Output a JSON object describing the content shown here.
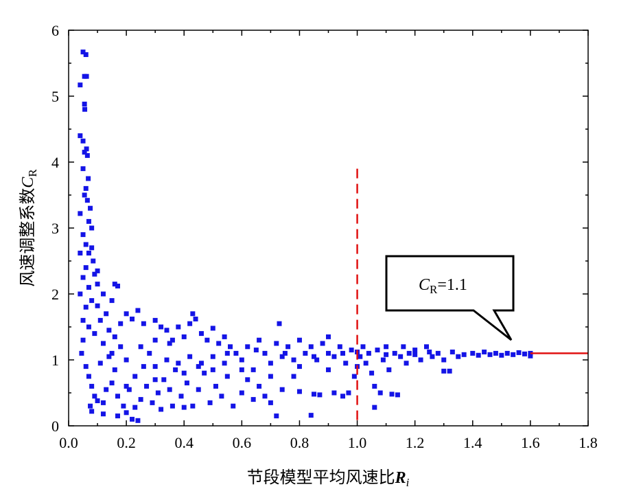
{
  "chart_data": {
    "type": "scatter",
    "title": "",
    "xlabel": "节段模型平均风速比",
    "xlabel_symbol": "R",
    "xlabel_sub": "i",
    "ylabel": "风速调整系数",
    "ylabel_symbol": "C",
    "ylabel_sub": "R",
    "xlim": [
      0,
      1.8
    ],
    "ylim": [
      0,
      6
    ],
    "xticks": [
      "0.0",
      "0.2",
      "0.4",
      "0.6",
      "0.8",
      "1.0",
      "1.2",
      "1.4",
      "1.6",
      "1.8"
    ],
    "yticks": [
      "0",
      "1",
      "2",
      "3",
      "4",
      "5",
      "6"
    ],
    "marker_color": "#1414e6",
    "reference_lines": [
      {
        "type": "vertical",
        "x": 1.0,
        "y_range": [
          0,
          3.9
        ],
        "style": "dashed",
        "color": "#e01010"
      },
      {
        "type": "horizontal",
        "y": 1.1,
        "x_range": [
          1.6,
          1.8
        ],
        "style": "solid",
        "color": "#e01010"
      }
    ],
    "annotation": {
      "symbol": "C",
      "sub": "R",
      "text": "=1.1",
      "points_to": [
        1.55,
        1.15
      ]
    },
    "series": [
      {
        "name": "CR",
        "points": [
          [
            0.05,
            5.67
          ],
          [
            0.06,
            5.63
          ],
          [
            0.055,
            5.3
          ],
          [
            0.062,
            5.3
          ],
          [
            0.04,
            5.17
          ],
          [
            0.055,
            4.88
          ],
          [
            0.056,
            4.8
          ],
          [
            0.04,
            4.4
          ],
          [
            0.05,
            4.32
          ],
          [
            0.055,
            4.15
          ],
          [
            0.062,
            4.2
          ],
          [
            0.065,
            4.1
          ],
          [
            0.05,
            3.9
          ],
          [
            0.068,
            3.75
          ],
          [
            0.06,
            3.6
          ],
          [
            0.055,
            3.5
          ],
          [
            0.065,
            3.42
          ],
          [
            0.075,
            3.3
          ],
          [
            0.04,
            3.22
          ],
          [
            0.07,
            3.1
          ],
          [
            0.08,
            3.0
          ],
          [
            0.05,
            2.9
          ],
          [
            0.06,
            2.75
          ],
          [
            0.07,
            2.62
          ],
          [
            0.04,
            2.62
          ],
          [
            0.085,
            2.5
          ],
          [
            0.06,
            2.4
          ],
          [
            0.09,
            2.3
          ],
          [
            0.05,
            2.25
          ],
          [
            0.1,
            2.15
          ],
          [
            0.07,
            2.1
          ],
          [
            0.12,
            2.0
          ],
          [
            0.04,
            2.0
          ],
          [
            0.08,
            1.9
          ],
          [
            0.06,
            1.8
          ],
          [
            0.1,
            1.82
          ],
          [
            0.05,
            1.6
          ],
          [
            0.11,
            1.6
          ],
          [
            0.07,
            1.5
          ],
          [
            0.09,
            1.4
          ],
          [
            0.05,
            1.3
          ],
          [
            0.13,
            1.7
          ],
          [
            0.15,
            1.9
          ],
          [
            0.17,
            2.12
          ],
          [
            0.16,
            2.15
          ],
          [
            0.1,
            2.35
          ],
          [
            0.08,
            2.7
          ],
          [
            0.045,
            1.1
          ],
          [
            0.06,
            0.9
          ],
          [
            0.07,
            0.75
          ],
          [
            0.08,
            0.6
          ],
          [
            0.09,
            0.45
          ],
          [
            0.075,
            0.3
          ],
          [
            0.08,
            0.22
          ],
          [
            0.1,
            0.38
          ],
          [
            0.12,
            0.35
          ],
          [
            0.12,
            0.18
          ],
          [
            0.13,
            0.55
          ],
          [
            0.11,
            0.95
          ],
          [
            0.14,
            1.05
          ],
          [
            0.12,
            1.25
          ],
          [
            0.14,
            1.45
          ],
          [
            0.16,
            1.35
          ],
          [
            0.18,
            1.55
          ],
          [
            0.2,
            1.7
          ],
          [
            0.22,
            1.62
          ],
          [
            0.24,
            1.75
          ],
          [
            0.26,
            1.55
          ],
          [
            0.18,
            1.2
          ],
          [
            0.2,
            1.0
          ],
          [
            0.16,
            0.85
          ],
          [
            0.15,
            0.65
          ],
          [
            0.17,
            0.45
          ],
          [
            0.19,
            0.3
          ],
          [
            0.17,
            0.15
          ],
          [
            0.2,
            0.2
          ],
          [
            0.22,
            0.1
          ],
          [
            0.24,
            0.08
          ],
          [
            0.23,
            0.28
          ],
          [
            0.21,
            0.55
          ],
          [
            0.25,
            0.4
          ],
          [
            0.27,
            0.6
          ],
          [
            0.23,
            0.75
          ],
          [
            0.26,
            0.9
          ],
          [
            0.28,
            1.1
          ],
          [
            0.3,
            1.3
          ],
          [
            0.32,
            1.5
          ],
          [
            0.3,
            1.6
          ],
          [
            0.34,
            1.45
          ],
          [
            0.36,
            1.3
          ],
          [
            0.38,
            1.5
          ],
          [
            0.4,
            1.35
          ],
          [
            0.42,
            1.55
          ],
          [
            0.43,
            1.7
          ],
          [
            0.44,
            1.62
          ],
          [
            0.46,
            1.4
          ],
          [
            0.48,
            1.3
          ],
          [
            0.5,
            1.48
          ],
          [
            0.52,
            1.25
          ],
          [
            0.54,
            1.35
          ],
          [
            0.29,
            0.35
          ],
          [
            0.31,
            0.5
          ],
          [
            0.33,
            0.7
          ],
          [
            0.35,
            0.55
          ],
          [
            0.37,
            0.85
          ],
          [
            0.39,
            0.45
          ],
          [
            0.41,
            0.65
          ],
          [
            0.43,
            0.3
          ],
          [
            0.45,
            0.55
          ],
          [
            0.47,
            0.8
          ],
          [
            0.49,
            0.35
          ],
          [
            0.51,
            0.6
          ],
          [
            0.53,
            0.45
          ],
          [
            0.55,
            0.75
          ],
          [
            0.57,
            0.3
          ],
          [
            0.32,
            0.25
          ],
          [
            0.36,
            0.3
          ],
          [
            0.4,
            0.28
          ],
          [
            0.3,
            0.9
          ],
          [
            0.34,
            1.0
          ],
          [
            0.38,
            0.95
          ],
          [
            0.42,
            1.05
          ],
          [
            0.46,
            0.95
          ],
          [
            0.5,
            1.05
          ],
          [
            0.54,
            0.95
          ],
          [
            0.58,
            1.1
          ],
          [
            0.56,
            1.2
          ],
          [
            0.6,
            1.0
          ],
          [
            0.62,
            1.2
          ],
          [
            0.64,
            0.85
          ],
          [
            0.66,
            1.3
          ],
          [
            0.68,
            1.1
          ],
          [
            0.7,
            0.95
          ],
          [
            0.72,
            1.25
          ],
          [
            0.73,
            1.55
          ],
          [
            0.74,
            1.05
          ],
          [
            0.76,
            1.2
          ],
          [
            0.78,
            1.0
          ],
          [
            0.8,
            1.3
          ],
          [
            0.82,
            1.1
          ],
          [
            0.84,
            1.2
          ],
          [
            0.86,
            1.0
          ],
          [
            0.88,
            1.25
          ],
          [
            0.9,
            1.35
          ],
          [
            0.92,
            1.05
          ],
          [
            0.94,
            1.2
          ],
          [
            0.96,
            0.95
          ],
          [
            0.98,
            1.15
          ],
          [
            0.6,
            0.5
          ],
          [
            0.62,
            0.7
          ],
          [
            0.64,
            0.4
          ],
          [
            0.66,
            0.6
          ],
          [
            0.68,
            0.45
          ],
          [
            0.7,
            0.35
          ],
          [
            0.72,
            0.15
          ],
          [
            0.74,
            0.55
          ],
          [
            0.78,
            0.75
          ],
          [
            0.8,
            0.52
          ],
          [
            0.84,
            0.16
          ],
          [
            0.85,
            0.48
          ],
          [
            0.87,
            0.47
          ],
          [
            0.9,
            0.85
          ],
          [
            0.92,
            0.5
          ],
          [
            0.95,
            0.45
          ],
          [
            0.97,
            0.5
          ],
          [
            0.99,
            0.75
          ],
          [
            1.0,
            0.9
          ],
          [
            1.01,
            1.05
          ],
          [
            1.02,
            1.2
          ],
          [
            1.03,
            0.95
          ],
          [
            1.04,
            1.1
          ],
          [
            1.05,
            0.8
          ],
          [
            1.06,
            0.28
          ],
          [
            1.06,
            0.6
          ],
          [
            1.07,
            1.15
          ],
          [
            1.08,
            0.5
          ],
          [
            1.09,
            1.0
          ],
          [
            1.1,
            1.2
          ],
          [
            1.11,
            0.85
          ],
          [
            1.12,
            0.48
          ],
          [
            1.13,
            1.1
          ],
          [
            1.14,
            0.47
          ],
          [
            1.15,
            1.05
          ],
          [
            1.16,
            1.2
          ],
          [
            1.17,
            0.95
          ],
          [
            1.18,
            1.1
          ],
          [
            1.2,
            1.15
          ],
          [
            1.22,
            1.0
          ],
          [
            1.24,
            1.2
          ],
          [
            1.26,
            1.05
          ],
          [
            1.28,
            1.1
          ],
          [
            1.3,
            1.0
          ],
          [
            1.3,
            0.83
          ],
          [
            1.32,
            0.83
          ],
          [
            1.33,
            1.12
          ],
          [
            1.35,
            1.05
          ],
          [
            1.37,
            1.08
          ],
          [
            1.4,
            1.1
          ],
          [
            1.42,
            1.07
          ],
          [
            1.44,
            1.12
          ],
          [
            1.46,
            1.08
          ],
          [
            1.48,
            1.1
          ],
          [
            1.5,
            1.07
          ],
          [
            1.52,
            1.1
          ],
          [
            1.54,
            1.08
          ],
          [
            1.56,
            1.11
          ],
          [
            1.58,
            1.09
          ],
          [
            1.6,
            1.1
          ],
          [
            1.6,
            1.06
          ],
          [
            0.45,
            0.9
          ],
          [
            0.55,
            1.1
          ],
          [
            0.65,
            1.15
          ],
          [
            0.75,
            1.1
          ],
          [
            0.85,
            1.05
          ],
          [
            0.95,
            1.1
          ],
          [
            0.35,
            1.25
          ],
          [
            0.25,
            1.2
          ],
          [
            0.15,
            1.1
          ],
          [
            0.2,
            0.6
          ],
          [
            0.3,
            0.7
          ],
          [
            0.4,
            0.8
          ],
          [
            0.5,
            0.85
          ],
          [
            0.6,
            0.85
          ],
          [
            0.7,
            0.75
          ],
          [
            0.8,
            0.9
          ],
          [
            0.9,
            1.1
          ],
          [
            1.0,
            1.12
          ],
          [
            1.1,
            1.08
          ],
          [
            1.2,
            1.08
          ],
          [
            1.25,
            1.12
          ]
        ]
      }
    ]
  }
}
